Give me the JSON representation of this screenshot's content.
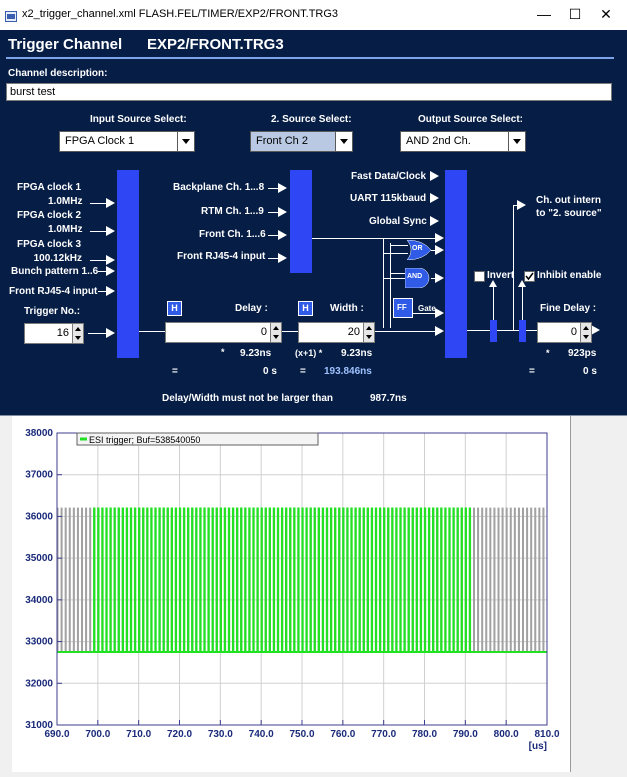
{
  "window": {
    "title": "x2_trigger_channel.xml   FLASH.FEL/TIMER/EXP2/FRONT.TRG3",
    "controls": [
      "—",
      "☐",
      "✕"
    ]
  },
  "dialog": {
    "title": "Trigger Channel",
    "path": "EXP2/FRONT.TRG3",
    "channel_description_label": "Channel description:",
    "channel_description_value": "burst test",
    "input_source": {
      "label": "Input Source Select:",
      "value": "FPGA Clock 1"
    },
    "second_source": {
      "label": "2. Source Select:",
      "value": "Front Ch 2"
    },
    "output_source": {
      "label": "Output Source Select:",
      "value": "AND 2nd Ch."
    },
    "inputs": [
      {
        "name": "FPGA clock 1",
        "sub": "1.0MHz"
      },
      {
        "name": "FPGA clock 2",
        "sub": "1.0MHz"
      },
      {
        "name": "FPGA clock 3",
        "sub": "100.12kHz"
      },
      {
        "name": "Bunch pattern 1..6",
        "sub": ""
      },
      {
        "name": "Front RJ45-4 input",
        "sub": ""
      }
    ],
    "second_inputs": [
      "Backplane Ch. 1...8",
      "RTM Ch. 1...9",
      "Front Ch. 1...6",
      "Front RJ45-4 input"
    ],
    "out_inputs": [
      "Fast Data/Clock",
      "UART 115kbaud",
      "Global Sync"
    ],
    "gates": {
      "or": "OR",
      "and": "AND",
      "ff": "FF",
      "gate": "Gate"
    },
    "ch_out_intern": [
      "Ch. out intern",
      "to \"2. source\""
    ],
    "invert_label": "Invert",
    "inhibit_label": "Inhibit enable",
    "trigger_no": {
      "label": "Trigger No.:",
      "value": "16"
    },
    "delay": {
      "label": "Delay :",
      "h_button": "H",
      "value": "0",
      "multiplier": "*",
      "step": "9.23ns",
      "eq": "=",
      "result": "0 s"
    },
    "width": {
      "label": "Width :",
      "h_button": "H",
      "value": "20",
      "multiplier": "(x+1) *",
      "step": "9.23ns",
      "eq": "=",
      "result": "193.846ns"
    },
    "fine_delay": {
      "label": "Fine Delay :",
      "value": "0",
      "multiplier": "*",
      "step": "923ps",
      "eq": "=",
      "result": "0 s"
    },
    "warning": "Delay/Width must not be larger than",
    "warning_value": "987.7ns"
  },
  "plot": {
    "legend": "ESI trigger; Buf=538540050",
    "x_unit": "[us]"
  },
  "chart_data": {
    "type": "line",
    "title": "",
    "xlabel": "[us]",
    "ylabel": "",
    "xlim": [
      690.0,
      810.0
    ],
    "ylim": [
      31000,
      38000
    ],
    "x_ticks": [
      "690.0",
      "700.0",
      "710.0",
      "720.0",
      "730.0",
      "740.0",
      "750.0",
      "760.0",
      "770.0",
      "780.0",
      "790.0",
      "800.0",
      "810.0"
    ],
    "y_ticks": [
      "31000",
      "32000",
      "33000",
      "34000",
      "35000",
      "36000",
      "37000",
      "38000"
    ],
    "grid": true,
    "legend_position": "top-left",
    "series": [
      {
        "name": "ESI trigger; Buf=538540050",
        "color": "#22e022",
        "x_range": [
          690,
          810
        ],
        "pulse_x_range": [
          699,
          792
        ],
        "baseline": 32750,
        "peak": 36200,
        "period": 1.0
      },
      {
        "name": "",
        "color": "#a0a0a0",
        "x_range": [
          690,
          810
        ],
        "pulse_x_range": [
          690,
          810
        ],
        "baseline": 32750,
        "peak": 36200,
        "period": 1.0
      }
    ]
  },
  "colors": {
    "dialog_bg": "#061d45",
    "bar": "#2f46f5",
    "plot_frame": "#3c3c8c",
    "green_trace": "#22e022",
    "gray_trace": "#a0a0a0"
  }
}
